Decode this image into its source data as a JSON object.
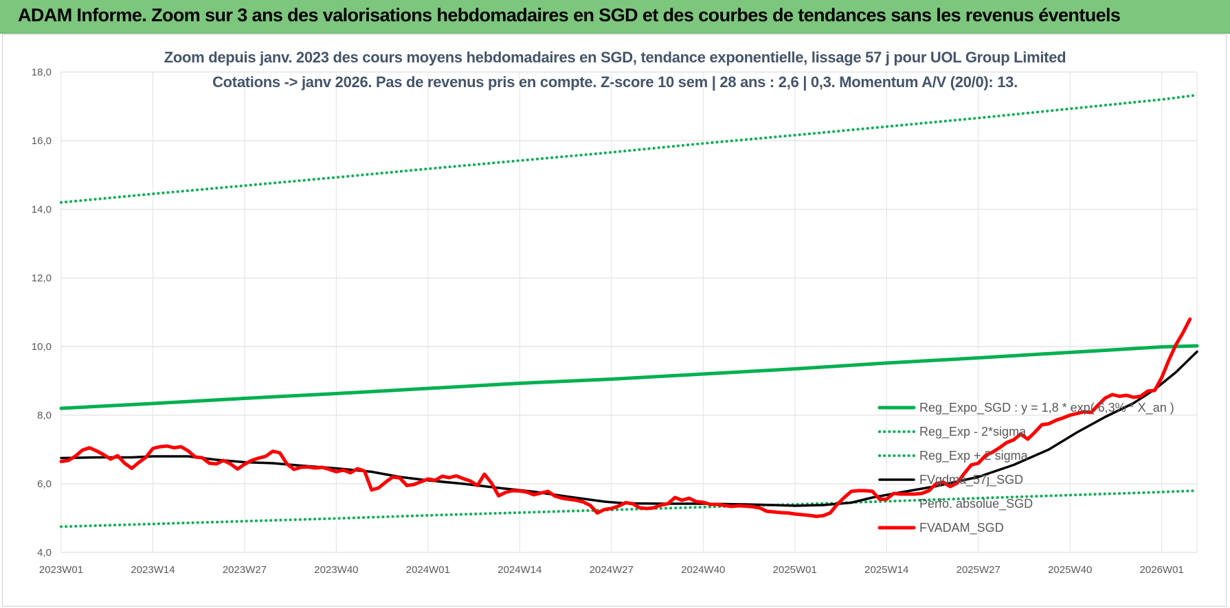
{
  "banner": {
    "title": "ADAM Informe. Zoom sur 3 ans des valorisations hebdomadaires en SGD et des courbes de tendances sans les revenus éventuels"
  },
  "colors": {
    "banner": "#7dc67d",
    "trend": "#00b050",
    "fvgdma": "#000000",
    "fvadam": "#ff0000",
    "title_text": "#44546a"
  },
  "chart_data": {
    "type": "line",
    "title": "Zoom depuis janv. 2023 des cours moyens hebdomadaires en SGD, tendance exponentielle, lissage 57 j pour UOL Group Limited",
    "subtitle": "Cotations -> janv 2026. Pas de revenus pris en compte. Z-score 10 sem | 28 ans : 2,6 | 0,3. Momentum A/V (20/0): 13.",
    "xlabel": "",
    "ylabel": "",
    "x_tick_labels": [
      "2023W01",
      "2023W14",
      "2023W27",
      "2023W40",
      "2024W01",
      "2024W14",
      "2024W27",
      "2024W40",
      "2025W01",
      "2025W14",
      "2025W27",
      "2025W40",
      "2026W01"
    ],
    "x_range": [
      0,
      161
    ],
    "ylim": [
      4,
      18
    ],
    "y_tick_labels": [
      "4,0",
      "6,0",
      "8,0",
      "10,0",
      "12,0",
      "14,0",
      "16,0",
      "18,0"
    ],
    "y_ticks": [
      4,
      6,
      8,
      10,
      12,
      14,
      16,
      18
    ],
    "grid": true,
    "legend_position": "right",
    "series": [
      {
        "name": "Reg_Expo_SGD : y = 1,8 * exp( 6,3% * X_an )",
        "style": "solid-thick",
        "color": "#00b050",
        "points": [
          [
            0,
            8.2
          ],
          [
            13,
            8.34
          ],
          [
            26,
            8.49
          ],
          [
            39,
            8.63
          ],
          [
            52,
            8.78
          ],
          [
            65,
            8.93
          ],
          [
            78,
            9.05
          ],
          [
            91,
            9.2
          ],
          [
            104,
            9.35
          ],
          [
            117,
            9.52
          ],
          [
            130,
            9.67
          ],
          [
            143,
            9.83
          ],
          [
            156,
            9.99
          ],
          [
            161,
            10.02
          ]
        ]
      },
      {
        "name": "Reg_Exp - 2*sigma",
        "style": "dotted",
        "color": "#00b050",
        "points": [
          [
            0,
            4.75
          ],
          [
            13,
            4.83
          ],
          [
            26,
            4.91
          ],
          [
            39,
            4.99
          ],
          [
            52,
            5.08
          ],
          [
            65,
            5.16
          ],
          [
            78,
            5.24
          ],
          [
            91,
            5.32
          ],
          [
            104,
            5.4
          ],
          [
            117,
            5.49
          ],
          [
            130,
            5.58
          ],
          [
            143,
            5.67
          ],
          [
            156,
            5.76
          ],
          [
            161,
            5.8
          ]
        ]
      },
      {
        "name": "Reg_Exp + 2 sigma",
        "style": "dotted",
        "color": "#00b050",
        "points": [
          [
            0,
            14.2
          ],
          [
            13,
            14.45
          ],
          [
            26,
            14.69
          ],
          [
            39,
            14.93
          ],
          [
            52,
            15.18
          ],
          [
            65,
            15.42
          ],
          [
            78,
            15.66
          ],
          [
            91,
            15.92
          ],
          [
            104,
            16.16
          ],
          [
            117,
            16.41
          ],
          [
            130,
            16.66
          ],
          [
            143,
            16.93
          ],
          [
            156,
            17.2
          ],
          [
            161,
            17.33
          ]
        ]
      },
      {
        "name": "FVgdma_57j_SGD",
        "style": "solid",
        "color": "#000000",
        "points": [
          [
            0,
            6.75
          ],
          [
            5,
            6.77
          ],
          [
            10,
            6.77
          ],
          [
            13,
            6.8
          ],
          [
            18,
            6.8
          ],
          [
            22,
            6.7
          ],
          [
            26,
            6.63
          ],
          [
            30,
            6.6
          ],
          [
            34,
            6.53
          ],
          [
            39,
            6.45
          ],
          [
            44,
            6.35
          ],
          [
            48,
            6.2
          ],
          [
            52,
            6.1
          ],
          [
            57,
            6.0
          ],
          [
            62,
            5.88
          ],
          [
            67,
            5.77
          ],
          [
            72,
            5.62
          ],
          [
            77,
            5.48
          ],
          [
            80,
            5.43
          ],
          [
            86,
            5.42
          ],
          [
            91,
            5.42
          ],
          [
            97,
            5.4
          ],
          [
            101,
            5.38
          ],
          [
            104,
            5.36
          ],
          [
            108,
            5.38
          ],
          [
            112,
            5.45
          ],
          [
            115,
            5.6
          ],
          [
            119,
            5.75
          ],
          [
            124,
            5.93
          ],
          [
            130,
            6.2
          ],
          [
            135,
            6.55
          ],
          [
            140,
            7.0
          ],
          [
            144,
            7.5
          ],
          [
            148,
            7.95
          ],
          [
            152,
            8.35
          ],
          [
            155,
            8.75
          ],
          [
            158,
            9.25
          ],
          [
            161,
            9.85
          ]
        ]
      },
      {
        "name": "Perfo. absolue_SGD",
        "style": "none",
        "color": "#a6a6a6",
        "points": []
      },
      {
        "name": "FVADAM_SGD",
        "style": "solid-thick",
        "color": "#ff0000",
        "points": [
          [
            0,
            6.65
          ],
          [
            1,
            6.68
          ],
          [
            2,
            6.8
          ],
          [
            3,
            6.98
          ],
          [
            4,
            7.05
          ],
          [
            5,
            6.96
          ],
          [
            6,
            6.85
          ],
          [
            7,
            6.72
          ],
          [
            8,
            6.82
          ],
          [
            9,
            6.6
          ],
          [
            10,
            6.45
          ],
          [
            11,
            6.62
          ],
          [
            12,
            6.77
          ],
          [
            13,
            7.03
          ],
          [
            14,
            7.08
          ],
          [
            15,
            7.1
          ],
          [
            16,
            7.05
          ],
          [
            17,
            7.08
          ],
          [
            18,
            6.96
          ],
          [
            19,
            6.78
          ],
          [
            20,
            6.76
          ],
          [
            21,
            6.6
          ],
          [
            22,
            6.58
          ],
          [
            23,
            6.68
          ],
          [
            24,
            6.58
          ],
          [
            25,
            6.43
          ],
          [
            26,
            6.57
          ],
          [
            27,
            6.68
          ],
          [
            28,
            6.75
          ],
          [
            29,
            6.8
          ],
          [
            30,
            6.95
          ],
          [
            31,
            6.9
          ],
          [
            32,
            6.58
          ],
          [
            33,
            6.42
          ],
          [
            34,
            6.48
          ],
          [
            35,
            6.49
          ],
          [
            36,
            6.46
          ],
          [
            37,
            6.48
          ],
          [
            38,
            6.42
          ],
          [
            39,
            6.35
          ],
          [
            40,
            6.4
          ],
          [
            41,
            6.32
          ],
          [
            42,
            6.44
          ],
          [
            43,
            6.37
          ],
          [
            44,
            5.82
          ],
          [
            45,
            5.88
          ],
          [
            46,
            6.05
          ],
          [
            47,
            6.2
          ],
          [
            48,
            6.17
          ],
          [
            49,
            5.95
          ],
          [
            50,
            5.98
          ],
          [
            51,
            6.06
          ],
          [
            52,
            6.14
          ],
          [
            53,
            6.1
          ],
          [
            54,
            6.22
          ],
          [
            55,
            6.18
          ],
          [
            56,
            6.23
          ],
          [
            57,
            6.15
          ],
          [
            58,
            6.08
          ],
          [
            59,
            5.95
          ],
          [
            60,
            6.28
          ],
          [
            61,
            6.02
          ],
          [
            62,
            5.65
          ],
          [
            63,
            5.75
          ],
          [
            64,
            5.8
          ],
          [
            65,
            5.79
          ],
          [
            66,
            5.76
          ],
          [
            67,
            5.68
          ],
          [
            68,
            5.73
          ],
          [
            69,
            5.78
          ],
          [
            70,
            5.64
          ],
          [
            71,
            5.58
          ],
          [
            72,
            5.55
          ],
          [
            73,
            5.52
          ],
          [
            74,
            5.47
          ],
          [
            75,
            5.37
          ],
          [
            76,
            5.15
          ],
          [
            77,
            5.25
          ],
          [
            78,
            5.28
          ],
          [
            79,
            5.35
          ],
          [
            80,
            5.45
          ],
          [
            81,
            5.42
          ],
          [
            82,
            5.3
          ],
          [
            83,
            5.28
          ],
          [
            84,
            5.3
          ],
          [
            85,
            5.38
          ],
          [
            86,
            5.42
          ],
          [
            87,
            5.6
          ],
          [
            88,
            5.52
          ],
          [
            89,
            5.58
          ],
          [
            90,
            5.48
          ],
          [
            91,
            5.46
          ],
          [
            92,
            5.4
          ],
          [
            93,
            5.4
          ],
          [
            94,
            5.37
          ],
          [
            95,
            5.34
          ],
          [
            96,
            5.36
          ],
          [
            97,
            5.35
          ],
          [
            98,
            5.33
          ],
          [
            99,
            5.3
          ],
          [
            100,
            5.2
          ],
          [
            101,
            5.18
          ],
          [
            102,
            5.16
          ],
          [
            103,
            5.15
          ],
          [
            104,
            5.12
          ],
          [
            105,
            5.1
          ],
          [
            106,
            5.08
          ],
          [
            107,
            5.05
          ],
          [
            108,
            5.07
          ],
          [
            109,
            5.15
          ],
          [
            110,
            5.4
          ],
          [
            111,
            5.6
          ],
          [
            112,
            5.78
          ],
          [
            113,
            5.8
          ],
          [
            114,
            5.8
          ],
          [
            115,
            5.78
          ],
          [
            116,
            5.55
          ],
          [
            117,
            5.55
          ],
          [
            118,
            5.72
          ],
          [
            119,
            5.7
          ],
          [
            120,
            5.7
          ],
          [
            121,
            5.7
          ],
          [
            122,
            5.72
          ],
          [
            123,
            5.8
          ],
          [
            124,
            6.0
          ],
          [
            125,
            6.05
          ],
          [
            126,
            5.92
          ],
          [
            127,
            6.02
          ],
          [
            128,
            6.3
          ],
          [
            129,
            6.55
          ],
          [
            130,
            6.6
          ],
          [
            131,
            6.82
          ],
          [
            132,
            6.92
          ],
          [
            133,
            7.05
          ],
          [
            134,
            7.2
          ],
          [
            135,
            7.28
          ],
          [
            136,
            7.45
          ],
          [
            137,
            7.3
          ],
          [
            138,
            7.5
          ],
          [
            139,
            7.72
          ],
          [
            140,
            7.75
          ],
          [
            141,
            7.85
          ],
          [
            142,
            7.92
          ],
          [
            143,
            8.0
          ],
          [
            144,
            8.05
          ],
          [
            145,
            8.1
          ],
          [
            146,
            8.08
          ],
          [
            147,
            8.3
          ],
          [
            148,
            8.5
          ],
          [
            149,
            8.6
          ],
          [
            150,
            8.55
          ],
          [
            151,
            8.58
          ],
          [
            152,
            8.52
          ],
          [
            153,
            8.55
          ],
          [
            154,
            8.7
          ],
          [
            155,
            8.72
          ],
          [
            156,
            9.1
          ],
          [
            157,
            9.6
          ],
          [
            158,
            10.05
          ],
          [
            159,
            10.4
          ],
          [
            160,
            10.8
          ]
        ]
      }
    ]
  }
}
